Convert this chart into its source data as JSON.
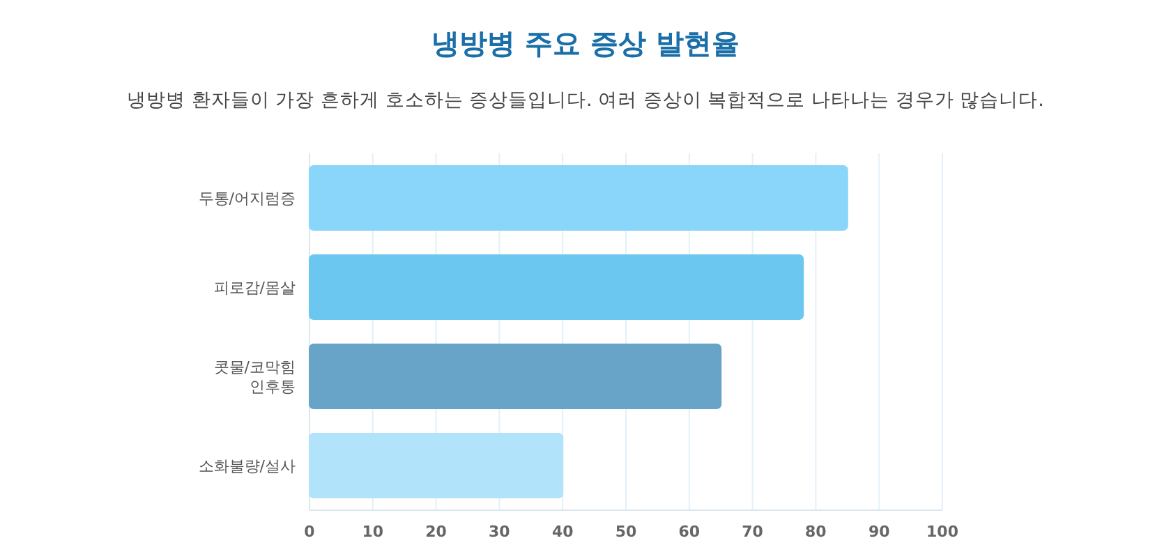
{
  "chart_data": {
    "type": "bar",
    "orientation": "horizontal",
    "title": "냉방병 주요 증상 발현율",
    "subtitle": "냉방병 환자들이 가장 흔하게 호소하는 증상들입니다. 여러 증상이 복합적으로 나타나는 경우가 많습니다.",
    "categories": [
      "두통/어지럼증",
      "피로감/몸살",
      "콧물/코막힘\n인후통",
      "소화불량/설사"
    ],
    "values": [
      85,
      78,
      65,
      40
    ],
    "colors": [
      "#8ad6fa",
      "#6cc7f0",
      "#67a4c8",
      "#b1e3fa"
    ],
    "xlim": [
      0,
      100
    ],
    "xticks": [
      0,
      10,
      20,
      30,
      40,
      50,
      60,
      70,
      80,
      90,
      100
    ],
    "grid": "x"
  }
}
